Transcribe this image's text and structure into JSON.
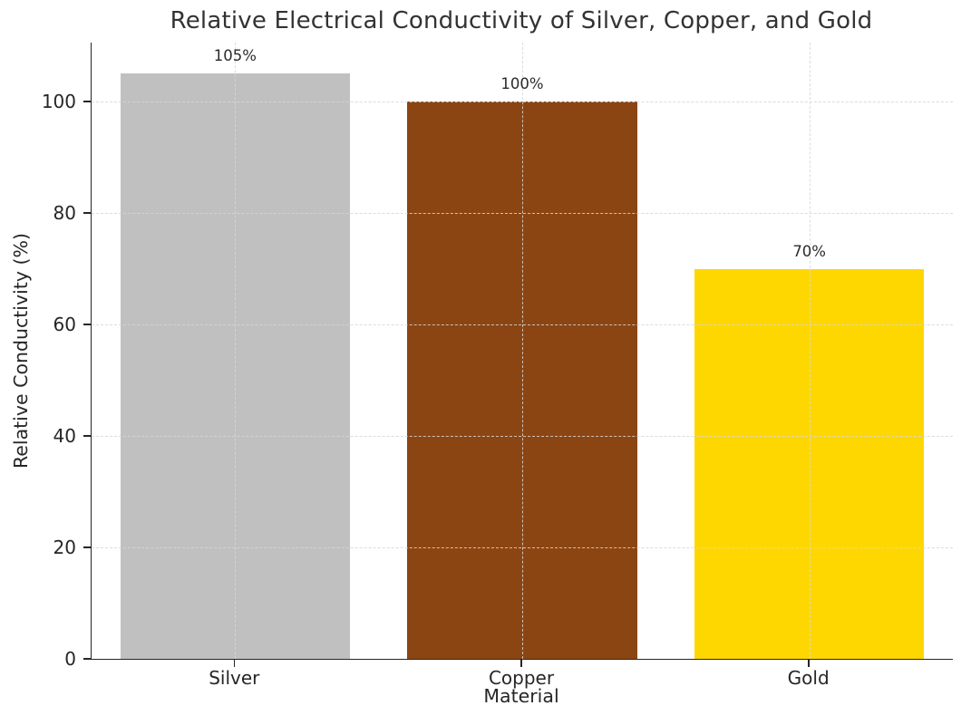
{
  "chart_data": {
    "type": "bar",
    "title": "Relative Electrical Conductivity of Silver, Copper, and Gold",
    "categories": [
      "Silver",
      "Copper",
      "Gold"
    ],
    "values": [
      105,
      100,
      70
    ],
    "bar_labels": [
      "105%",
      "100%",
      "70%"
    ],
    "bar_colors": [
      "#C0C0C0",
      "#8B4513",
      "#FFD700"
    ],
    "xlabel": "Material",
    "ylabel": "Relative Conductivity (%)",
    "ylim": [
      0,
      110.6
    ],
    "yticks": [
      0,
      20,
      40,
      60,
      80,
      100
    ],
    "bar_width_fraction": 0.8,
    "grid": "dashed, both axes, drawn above bars",
    "legend_position": "none",
    "spines": [
      "left",
      "bottom"
    ]
  },
  "style": {
    "grid_color": "#d7d7d7",
    "spine_color": "#262626",
    "tick_text_color": "#262626",
    "title_color": "#333333",
    "background_color": "#ffffff"
  }
}
